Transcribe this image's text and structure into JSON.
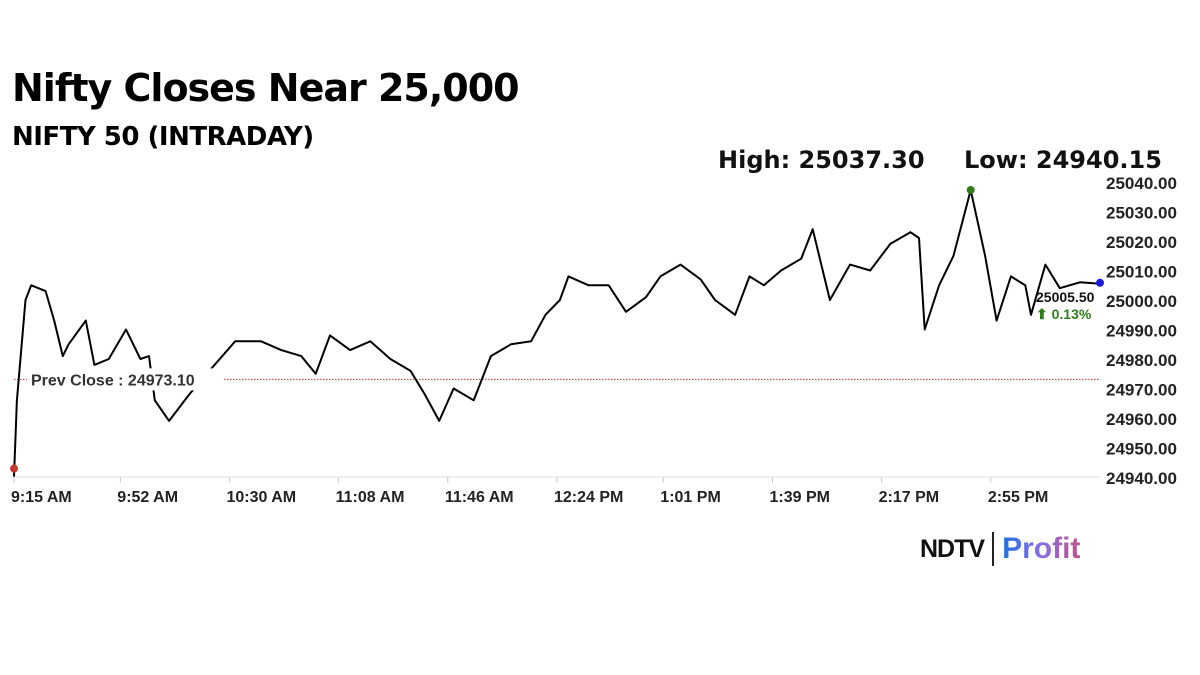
{
  "header": {
    "title": "Nifty Closes Near 25,000",
    "subtitle": "NIFTY 50 (INTRADAY)",
    "high_label": "High: 25037.30",
    "low_label": "Low: 24940.15"
  },
  "logo": {
    "brand": "NDTV",
    "product": "Profit"
  },
  "colors": {
    "line": "#000000",
    "prev_close": "#c0392b",
    "high_dot": "#2e7d1a",
    "low_dot": "#c0392b",
    "last_dot": "#1a1ae0",
    "change": "#2e7d1a"
  },
  "chart_data": {
    "type": "line",
    "title": "NIFTY 50 (INTRADAY)",
    "xlabel": "",
    "ylabel": "",
    "ylim": [
      24940,
      25040
    ],
    "yticks": [
      "25040.00",
      "25030.00",
      "25020.00",
      "25010.00",
      "25000.00",
      "24990.00",
      "24980.00",
      "24970.00",
      "24960.00",
      "24950.00",
      "24940.00"
    ],
    "xticks": [
      "9:15 AM",
      "9:52 AM",
      "10:30 AM",
      "11:08 AM",
      "11:46 AM",
      "12:24 PM",
      "1:01 PM",
      "1:39 PM",
      "2:17 PM",
      "2:55 PM"
    ],
    "xtick_minutes": [
      0,
      37,
      75,
      113,
      151,
      189,
      226,
      264,
      302,
      340
    ],
    "x_range_minutes": [
      0,
      378
    ],
    "prev_close": 24973.1,
    "prev_close_label": "Prev Close : 24973.10",
    "last_value_label": "25005.50",
    "change_label": "⬆ 0.13%",
    "high": {
      "minute": 333,
      "value": 25037.3
    },
    "low": {
      "minute": 0,
      "value": 24940.15
    },
    "series": [
      {
        "name": "NIFTY 50",
        "minutes": [
          0,
          1,
          4,
          6,
          11,
          14,
          17,
          19,
          25,
          28,
          33,
          39,
          44,
          47,
          49,
          54,
          61,
          68,
          77,
          86,
          93,
          100,
          105,
          110,
          117,
          124,
          131,
          138,
          143,
          148,
          153,
          160,
          166,
          173,
          180,
          185,
          190,
          193,
          200,
          207,
          213,
          220,
          225,
          232,
          239,
          244,
          251,
          256,
          261,
          267,
          274,
          278,
          284,
          291,
          298,
          305,
          312,
          315,
          317,
          322,
          327,
          333,
          338,
          342,
          347,
          352,
          354,
          359,
          364,
          371,
          378
        ],
        "values": [
          24940.15,
          24966,
          25000,
          25005,
          25003,
          24993,
          24981,
          24985,
          24993,
          24978,
          24980,
          24990,
          24980,
          24981,
          24966,
          24959,
          24968,
          24976,
          24986,
          24986,
          24983,
          24981,
          24975,
          24988,
          24983,
          24986,
          24980,
          24976,
          24968,
          24959,
          24970,
          24966,
          24981,
          24985,
          24986,
          24995,
          25000,
          25008,
          25005,
          25005,
          24996,
          25001,
          25008,
          25012,
          25007,
          25000,
          24995,
          25008,
          25005,
          25010,
          25014,
          25024,
          25000,
          25012,
          25010,
          25019,
          25023,
          25021,
          24990,
          25005,
          25015,
          25037.3,
          25015,
          24993,
          25008,
          25005,
          24995,
          25012,
          25004,
          25006,
          25005.5
        ]
      }
    ]
  }
}
